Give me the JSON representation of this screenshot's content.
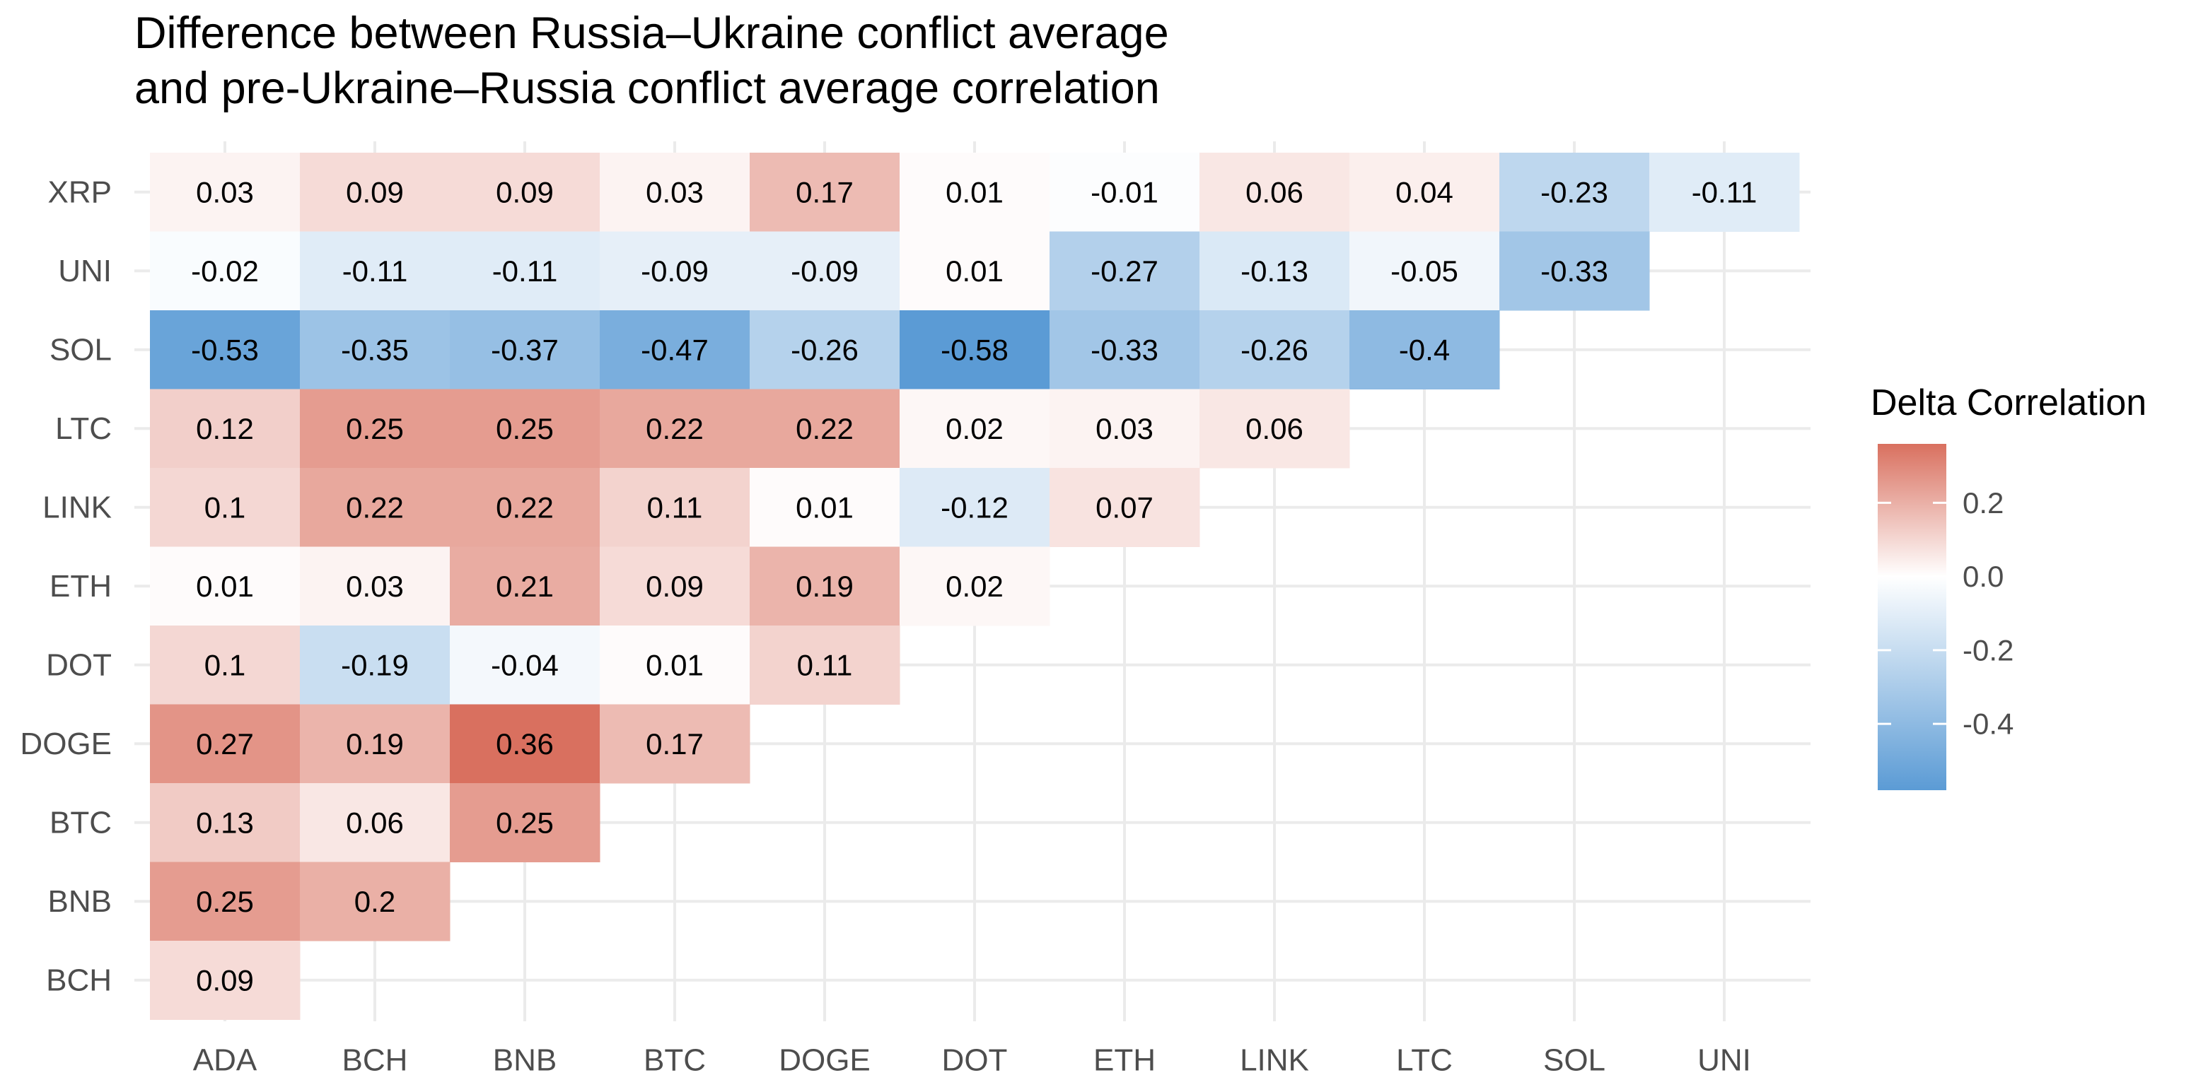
{
  "chart_data": {
    "type": "heatmap",
    "title_lines": [
      "Difference between  Russia–Ukraine conflict average",
      "and pre-Ukraine–Russia conflict average correlation"
    ],
    "x_categories": [
      "ADA",
      "BCH",
      "BNB",
      "BTC",
      "DOGE",
      "DOT",
      "ETH",
      "LINK",
      "LTC",
      "SOL",
      "UNI"
    ],
    "y_categories_top_to_bottom": [
      "XRP",
      "UNI",
      "SOL",
      "LTC",
      "LINK",
      "ETH",
      "DOT",
      "DOGE",
      "BTC",
      "BNB",
      "BCH"
    ],
    "cells": [
      {
        "x": "ADA",
        "y": "XRP",
        "value": 0.03,
        "label": "0.03"
      },
      {
        "x": "BCH",
        "y": "XRP",
        "value": 0.09,
        "label": "0.09"
      },
      {
        "x": "BNB",
        "y": "XRP",
        "value": 0.09,
        "label": "0.09"
      },
      {
        "x": "BTC",
        "y": "XRP",
        "value": 0.03,
        "label": "0.03"
      },
      {
        "x": "DOGE",
        "y": "XRP",
        "value": 0.17,
        "label": "0.17"
      },
      {
        "x": "DOT",
        "y": "XRP",
        "value": 0.01,
        "label": "0.01"
      },
      {
        "x": "ETH",
        "y": "XRP",
        "value": -0.01,
        "label": "-0.01"
      },
      {
        "x": "LINK",
        "y": "XRP",
        "value": 0.06,
        "label": "0.06"
      },
      {
        "x": "LTC",
        "y": "XRP",
        "value": 0.04,
        "label": "0.04"
      },
      {
        "x": "SOL",
        "y": "XRP",
        "value": -0.23,
        "label": "-0.23"
      },
      {
        "x": "UNI",
        "y": "XRP",
        "value": -0.11,
        "label": "-0.11"
      },
      {
        "x": "ADA",
        "y": "UNI",
        "value": -0.02,
        "label": "-0.02"
      },
      {
        "x": "BCH",
        "y": "UNI",
        "value": -0.11,
        "label": "-0.11"
      },
      {
        "x": "BNB",
        "y": "UNI",
        "value": -0.11,
        "label": "-0.11"
      },
      {
        "x": "BTC",
        "y": "UNI",
        "value": -0.09,
        "label": "-0.09"
      },
      {
        "x": "DOGE",
        "y": "UNI",
        "value": -0.09,
        "label": "-0.09"
      },
      {
        "x": "DOT",
        "y": "UNI",
        "value": 0.01,
        "label": "0.01"
      },
      {
        "x": "ETH",
        "y": "UNI",
        "value": -0.27,
        "label": "-0.27"
      },
      {
        "x": "LINK",
        "y": "UNI",
        "value": -0.13,
        "label": "-0.13"
      },
      {
        "x": "LTC",
        "y": "UNI",
        "value": -0.05,
        "label": "-0.05"
      },
      {
        "x": "SOL",
        "y": "UNI",
        "value": -0.33,
        "label": "-0.33"
      },
      {
        "x": "ADA",
        "y": "SOL",
        "value": -0.53,
        "label": "-0.53"
      },
      {
        "x": "BCH",
        "y": "SOL",
        "value": -0.35,
        "label": "-0.35"
      },
      {
        "x": "BNB",
        "y": "SOL",
        "value": -0.37,
        "label": "-0.37"
      },
      {
        "x": "BTC",
        "y": "SOL",
        "value": -0.47,
        "label": "-0.47"
      },
      {
        "x": "DOGE",
        "y": "SOL",
        "value": -0.26,
        "label": "-0.26"
      },
      {
        "x": "DOT",
        "y": "SOL",
        "value": -0.58,
        "label": "-0.58"
      },
      {
        "x": "ETH",
        "y": "SOL",
        "value": -0.33,
        "label": "-0.33"
      },
      {
        "x": "LINK",
        "y": "SOL",
        "value": -0.26,
        "label": "-0.26"
      },
      {
        "x": "LTC",
        "y": "SOL",
        "value": -0.4,
        "label": "-0.4"
      },
      {
        "x": "ADA",
        "y": "LTC",
        "value": 0.12,
        "label": "0.12"
      },
      {
        "x": "BCH",
        "y": "LTC",
        "value": 0.25,
        "label": "0.25"
      },
      {
        "x": "BNB",
        "y": "LTC",
        "value": 0.25,
        "label": "0.25"
      },
      {
        "x": "BTC",
        "y": "LTC",
        "value": 0.22,
        "label": "0.22"
      },
      {
        "x": "DOGE",
        "y": "LTC",
        "value": 0.22,
        "label": "0.22"
      },
      {
        "x": "DOT",
        "y": "LTC",
        "value": 0.02,
        "label": "0.02"
      },
      {
        "x": "ETH",
        "y": "LTC",
        "value": 0.03,
        "label": "0.03"
      },
      {
        "x": "LINK",
        "y": "LTC",
        "value": 0.06,
        "label": "0.06"
      },
      {
        "x": "ADA",
        "y": "LINK",
        "value": 0.1,
        "label": "0.1"
      },
      {
        "x": "BCH",
        "y": "LINK",
        "value": 0.22,
        "label": "0.22"
      },
      {
        "x": "BNB",
        "y": "LINK",
        "value": 0.22,
        "label": "0.22"
      },
      {
        "x": "BTC",
        "y": "LINK",
        "value": 0.11,
        "label": "0.11"
      },
      {
        "x": "DOGE",
        "y": "LINK",
        "value": 0.01,
        "label": "0.01"
      },
      {
        "x": "DOT",
        "y": "LINK",
        "value": -0.12,
        "label": "-0.12"
      },
      {
        "x": "ETH",
        "y": "LINK",
        "value": 0.07,
        "label": "0.07"
      },
      {
        "x": "ADA",
        "y": "ETH",
        "value": 0.01,
        "label": "0.01"
      },
      {
        "x": "BCH",
        "y": "ETH",
        "value": 0.03,
        "label": "0.03"
      },
      {
        "x": "BNB",
        "y": "ETH",
        "value": 0.21,
        "label": "0.21"
      },
      {
        "x": "BTC",
        "y": "ETH",
        "value": 0.09,
        "label": "0.09"
      },
      {
        "x": "DOGE",
        "y": "ETH",
        "value": 0.19,
        "label": "0.19"
      },
      {
        "x": "DOT",
        "y": "ETH",
        "value": 0.02,
        "label": "0.02"
      },
      {
        "x": "ADA",
        "y": "DOT",
        "value": 0.1,
        "label": "0.1"
      },
      {
        "x": "BCH",
        "y": "DOT",
        "value": -0.19,
        "label": "-0.19"
      },
      {
        "x": "BNB",
        "y": "DOT",
        "value": -0.04,
        "label": "-0.04"
      },
      {
        "x": "BTC",
        "y": "DOT",
        "value": 0.01,
        "label": "0.01"
      },
      {
        "x": "DOGE",
        "y": "DOT",
        "value": 0.11,
        "label": "0.11"
      },
      {
        "x": "ADA",
        "y": "DOGE",
        "value": 0.27,
        "label": "0.27"
      },
      {
        "x": "BCH",
        "y": "DOGE",
        "value": 0.19,
        "label": "0.19"
      },
      {
        "x": "BNB",
        "y": "DOGE",
        "value": 0.36,
        "label": "0.36"
      },
      {
        "x": "BTC",
        "y": "DOGE",
        "value": 0.17,
        "label": "0.17"
      },
      {
        "x": "ADA",
        "y": "BTC",
        "value": 0.13,
        "label": "0.13"
      },
      {
        "x": "BCH",
        "y": "BTC",
        "value": 0.06,
        "label": "0.06"
      },
      {
        "x": "BNB",
        "y": "BTC",
        "value": 0.25,
        "label": "0.25"
      },
      {
        "x": "ADA",
        "y": "BNB",
        "value": 0.25,
        "label": "0.25"
      },
      {
        "x": "BCH",
        "y": "BNB",
        "value": 0.2,
        "label": "0.2"
      },
      {
        "x": "ADA",
        "y": "BCH",
        "value": 0.09,
        "label": "0.09"
      }
    ],
    "color_scale": {
      "low_color": "#5b9bd5",
      "mid_color": "#ffffff",
      "high_color": "#d9705f",
      "min_value": -0.58,
      "mid_value": 0.0,
      "max_value": 0.36
    },
    "legend": {
      "title": "Delta Correlation",
      "placement": "right",
      "tick_values": [
        0.2,
        0.0,
        -0.2,
        -0.4
      ],
      "tick_labels": [
        "0.2",
        "0.0",
        "-0.2",
        "-0.4"
      ]
    },
    "grid": true,
    "grid_color": "#ebebeb",
    "text_color": "#000000",
    "axis_text_color": "#4d4d4d"
  }
}
